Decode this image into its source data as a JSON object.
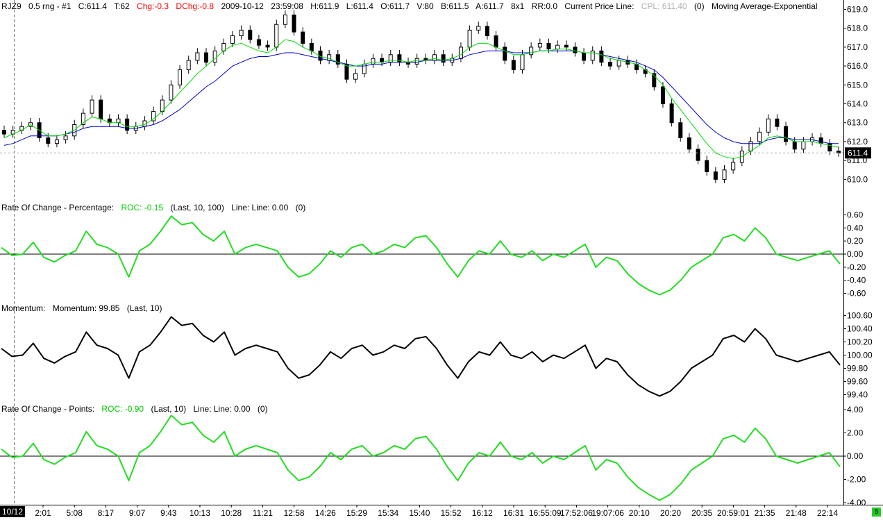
{
  "header": {
    "symbol": "RJZ9",
    "bar_type": "0.5 rng - #1",
    "close": "C:611.4",
    "ticks": "T:62",
    "chg": "Chg:-0.3",
    "dchg": "DChg:-0.8",
    "date": "2009-10-12",
    "time": "23:59:08",
    "high": "H:611.9",
    "low": "L:611.4",
    "open": "O:611.7",
    "volume": "V:80",
    "bid": "B:611.5",
    "ask": "A:611.7",
    "size": "8x1",
    "rr": "RR:0.0",
    "cpl_label": "Current Price Line:",
    "cpl_value": "CPL: 611.40",
    "cpl_count": "(0)",
    "ma_label": "Moving Average-Exponential"
  },
  "current_price_tag": "611.4",
  "panels": {
    "roc_pct": {
      "title": "Rate Of Change - Percentage:",
      "value": "ROC: -0.15",
      "params": "(Last, 10, 100)",
      "line": "Line:  Line: 0.00",
      "count": "(0)"
    },
    "momentum": {
      "title": "Momentum:",
      "value": "Momentum: 99.85",
      "params": "(Last, 10)"
    },
    "roc_pts": {
      "title": "Rate Of Change - Points:",
      "value": "ROC: -0.90",
      "params": "(Last, 10)",
      "line": "Line:  Line: 0.00",
      "count": "(0)"
    }
  },
  "date_box": "10/12",
  "status_box": "5",
  "colors": {
    "candle": "#000000",
    "ema_fast": "#00dd00",
    "ema_slow": "#0000cc",
    "roc": "#22dd22",
    "momentum": "#000000",
    "price_tag_bg": "#000000",
    "status": "#22cc22"
  },
  "chart_data": [
    {
      "type": "candlestick",
      "ylim": [
        609.5,
        619.2
      ],
      "yticks": [
        "619.0",
        "618.0",
        "617.0",
        "616.0",
        "615.0",
        "614.0",
        "613.0",
        "612.0",
        "611.0",
        "610.0"
      ],
      "xticks": [
        "2:01",
        "5:08",
        "8:17",
        "9:07",
        "9:43",
        "10:13",
        "10:28",
        "11:21",
        "12:58",
        "14:26",
        "15:29",
        "15:34",
        "15:40",
        "15:52",
        "16:12",
        "16:31",
        "16:55:09",
        "17:52:06",
        "19:07:06",
        "20:10",
        "20:20",
        "20:35",
        "20:59:01",
        "21:35",
        "21:48",
        "22:14"
      ],
      "close_path": [
        612.4,
        612.6,
        612.8,
        613.0,
        612.2,
        611.9,
        612.1,
        612.3,
        612.9,
        613.5,
        614.2,
        613.2,
        613.0,
        613.2,
        612.6,
        612.8,
        613.1,
        613.6,
        614.2,
        615.0,
        615.8,
        616.3,
        616.7,
        616.2,
        616.8,
        617.2,
        617.6,
        617.9,
        617.4,
        617.1,
        617.0,
        618.2,
        618.7,
        617.8,
        617.2,
        616.8,
        616.3,
        616.6,
        616.1,
        615.3,
        615.6,
        616.1,
        616.4,
        616.2,
        616.6,
        616.2,
        616.1,
        616.4,
        616.3,
        616.6,
        616.2,
        616.4,
        617.0,
        617.9,
        618.1,
        617.6,
        617.0,
        616.3,
        615.8,
        616.6,
        617.0,
        617.2,
        616.9,
        617.1,
        617.0,
        616.7,
        616.3,
        616.8,
        616.2,
        616.0,
        616.3,
        616.1,
        615.8,
        615.6,
        614.9,
        614.0,
        613.0,
        612.2,
        611.6,
        611.0,
        610.4,
        610.0,
        610.5,
        610.9,
        611.5,
        612.0,
        612.5,
        613.2,
        612.8,
        612.0,
        611.6,
        612.0,
        612.2,
        611.9,
        611.5,
        611.4
      ],
      "ema_fast_path": [
        612.2,
        612.4,
        612.6,
        612.9,
        612.6,
        612.3,
        612.3,
        612.4,
        612.6,
        613.0,
        613.3,
        613.2,
        613.0,
        613.0,
        612.8,
        612.8,
        612.9,
        613.2,
        613.6,
        614.1,
        614.6,
        615.1,
        615.6,
        616.0,
        616.4,
        616.8,
        617.1,
        617.2,
        617.0,
        616.8,
        616.7,
        617.0,
        617.4,
        617.3,
        617.0,
        616.8,
        616.5,
        616.4,
        616.2,
        616.0,
        616.0,
        616.1,
        616.2,
        616.2,
        616.3,
        616.3,
        616.2,
        616.3,
        616.3,
        616.4,
        616.3,
        616.4,
        616.6,
        617.0,
        617.2,
        617.2,
        617.0,
        616.8,
        616.6,
        616.6,
        616.7,
        616.8,
        616.8,
        616.9,
        616.9,
        616.8,
        616.7,
        616.7,
        616.6,
        616.4,
        616.3,
        616.2,
        616.1,
        615.8,
        615.5,
        615.0,
        614.3,
        613.7,
        613.1,
        612.5,
        611.9,
        611.4,
        611.2,
        611.1,
        611.2,
        611.5,
        611.8,
        612.2,
        612.3,
        612.2,
        612.0,
        612.0,
        612.0,
        611.9,
        611.8,
        611.7
      ],
      "ema_slow_path": [
        611.8,
        611.9,
        612.1,
        612.3,
        612.3,
        612.3,
        612.3,
        612.4,
        612.5,
        612.7,
        612.8,
        612.8,
        612.8,
        612.8,
        612.7,
        612.7,
        612.8,
        612.9,
        613.1,
        613.4,
        613.7,
        614.1,
        614.5,
        614.9,
        615.2,
        615.6,
        616.0,
        616.2,
        616.4,
        616.5,
        616.5,
        616.6,
        616.7,
        616.7,
        616.6,
        616.5,
        616.4,
        616.3,
        616.2,
        616.1,
        616.0,
        616.0,
        616.1,
        616.1,
        616.2,
        616.2,
        616.2,
        616.2,
        616.3,
        616.3,
        616.3,
        616.3,
        616.4,
        616.6,
        616.7,
        616.8,
        616.8,
        616.8,
        616.7,
        616.7,
        616.7,
        616.8,
        616.8,
        616.8,
        616.8,
        616.8,
        616.7,
        616.7,
        616.6,
        616.5,
        616.4,
        616.3,
        616.2,
        616.0,
        615.8,
        615.4,
        614.9,
        614.4,
        613.9,
        613.4,
        612.9,
        612.5,
        612.2,
        612.0,
        611.9,
        611.9,
        611.9,
        612.1,
        612.2,
        612.2,
        612.1,
        612.1,
        612.1,
        612.0,
        611.9,
        611.9
      ]
    },
    {
      "type": "line",
      "title": "Rate Of Change - Percentage",
      "ylim": [
        -0.7,
        0.7
      ],
      "yticks": [
        "0.60",
        "0.40",
        "0.20",
        "0.00",
        "-0.20",
        "-0.40",
        "-0.60"
      ],
      "zero_line": 0,
      "values": [
        0.1,
        -0.02,
        0.0,
        0.18,
        -0.05,
        -0.12,
        -0.02,
        0.05,
        0.35,
        0.15,
        0.1,
        0.0,
        -0.35,
        0.05,
        0.15,
        0.35,
        0.58,
        0.45,
        0.48,
        0.3,
        0.2,
        0.35,
        0.0,
        0.1,
        0.15,
        0.1,
        0.05,
        -0.2,
        -0.35,
        -0.3,
        -0.15,
        0.05,
        -0.05,
        0.1,
        0.15,
        0.0,
        0.05,
        0.15,
        0.1,
        0.25,
        0.28,
        0.1,
        -0.15,
        -0.35,
        -0.1,
        0.05,
        0.0,
        0.2,
        0.0,
        -0.05,
        0.05,
        -0.1,
        0.0,
        -0.05,
        0.05,
        0.15,
        -0.2,
        -0.05,
        -0.1,
        -0.3,
        -0.45,
        -0.55,
        -0.62,
        -0.55,
        -0.4,
        -0.2,
        -0.1,
        0.0,
        0.25,
        0.3,
        0.2,
        0.4,
        0.25,
        0.0,
        -0.05,
        -0.1,
        -0.05,
        0.0,
        0.05,
        -0.15
      ]
    },
    {
      "type": "line",
      "title": "Momentum",
      "ylim": [
        99.3,
        100.7
      ],
      "yticks": [
        "100.60",
        "100.40",
        "100.20",
        "100.00",
        "99.80",
        "99.60",
        "99.40"
      ],
      "values": [
        100.1,
        99.98,
        100.0,
        100.18,
        99.95,
        99.88,
        99.98,
        100.05,
        100.35,
        100.15,
        100.1,
        100.0,
        99.65,
        100.05,
        100.15,
        100.35,
        100.58,
        100.45,
        100.48,
        100.3,
        100.2,
        100.35,
        100.0,
        100.1,
        100.15,
        100.1,
        100.05,
        99.8,
        99.65,
        99.7,
        99.85,
        100.05,
        99.95,
        100.1,
        100.15,
        100.0,
        100.05,
        100.15,
        100.1,
        100.25,
        100.28,
        100.1,
        99.85,
        99.65,
        99.9,
        100.05,
        100.0,
        100.2,
        100.0,
        99.95,
        100.05,
        99.9,
        100.0,
        99.95,
        100.05,
        100.15,
        99.8,
        99.95,
        99.9,
        99.7,
        99.55,
        99.45,
        99.38,
        99.45,
        99.6,
        99.8,
        99.9,
        100.0,
        100.25,
        100.3,
        100.2,
        100.4,
        100.25,
        100.0,
        99.95,
        99.9,
        99.95,
        100.0,
        100.05,
        99.85
      ]
    },
    {
      "type": "line",
      "title": "Rate Of Change - Points",
      "ylim": [
        -4.0,
        4.0
      ],
      "yticks": [
        "4.00",
        "2.00",
        "0.00",
        "-2.00",
        "-4.00"
      ],
      "zero_line": 0,
      "values": [
        0.6,
        -0.1,
        0.0,
        1.1,
        -0.3,
        -0.7,
        -0.1,
        0.3,
        2.1,
        0.9,
        0.6,
        0.0,
        -2.1,
        0.3,
        0.9,
        2.1,
        3.5,
        2.7,
        2.9,
        1.8,
        1.2,
        2.1,
        0.0,
        0.6,
        0.9,
        0.6,
        0.3,
        -1.2,
        -2.1,
        -1.8,
        -0.9,
        0.3,
        -0.3,
        0.6,
        0.9,
        0.0,
        0.3,
        0.9,
        0.6,
        1.5,
        1.7,
        0.6,
        -0.9,
        -2.1,
        -0.6,
        0.3,
        0.0,
        1.2,
        0.0,
        -0.3,
        0.3,
        -0.6,
        0.0,
        -0.3,
        0.3,
        0.9,
        -1.2,
        -0.3,
        -0.6,
        -1.8,
        -2.7,
        -3.3,
        -3.8,
        -3.3,
        -2.4,
        -1.2,
        -0.6,
        0.0,
        1.5,
        1.8,
        1.2,
        2.4,
        1.5,
        0.0,
        -0.3,
        -0.6,
        -0.3,
        0.0,
        0.3,
        -0.9
      ]
    }
  ]
}
